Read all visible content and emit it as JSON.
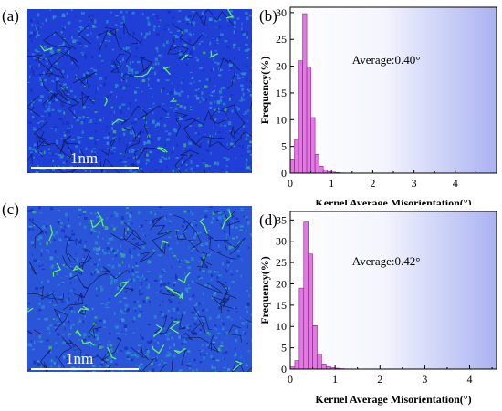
{
  "panels": {
    "a": "(a)",
    "b": "(b)",
    "c": "(c)",
    "d": "(d)"
  },
  "micrographs": [
    {
      "scale_label": "1nm",
      "base_color": "#1f3fd6"
    },
    {
      "scale_label": "1nm",
      "base_color": "#2a55d8"
    }
  ],
  "chart_data": [
    {
      "type": "bar",
      "title": "",
      "xlabel": "Kernel Average Misorientation(°)",
      "ylabel": "Frequency(%)",
      "xlim": [
        0,
        5
      ],
      "ylim": [
        0,
        31
      ],
      "xticks": [
        0,
        1,
        2,
        3,
        4
      ],
      "yticks": [
        0,
        5,
        10,
        15,
        20,
        25,
        30
      ],
      "annotation": "Average:0.40°",
      "bin_width": 0.1,
      "x": [
        0.05,
        0.15,
        0.25,
        0.35,
        0.45,
        0.55,
        0.65,
        0.75,
        0.85,
        0.95,
        1.05,
        1.15,
        1.25
      ],
      "values": [
        2.5,
        6.3,
        21.0,
        29.8,
        19.8,
        10.4,
        3.5,
        1.3,
        0.6,
        0.3,
        0.2,
        0.1,
        0.05
      ]
    },
    {
      "type": "bar",
      "title": "",
      "xlabel": "Kernel Average Misorientation(°)",
      "ylabel": "Frequency(%)",
      "xlim": [
        0,
        4.6
      ],
      "ylim": [
        0,
        37
      ],
      "xticks": [
        0,
        1,
        2,
        3,
        4
      ],
      "yticks": [
        0,
        5,
        10,
        15,
        20,
        25,
        30,
        35
      ],
      "annotation": "Average:0.42°",
      "bin_width": 0.1,
      "x": [
        0.05,
        0.15,
        0.25,
        0.35,
        0.45,
        0.55,
        0.65,
        0.75,
        0.85,
        0.95,
        1.05,
        1.15,
        1.25
      ],
      "values": [
        0.5,
        2.0,
        19.0,
        34.5,
        27.0,
        10.2,
        3.5,
        1.2,
        0.6,
        0.3,
        0.2,
        0.1,
        0.05
      ]
    }
  ],
  "colors": {
    "bar_fill": "#e07ae0",
    "bar_stroke": "#8a1f8a",
    "gradient_start": "#ffffff",
    "gradient_end": "#aab2f2"
  }
}
